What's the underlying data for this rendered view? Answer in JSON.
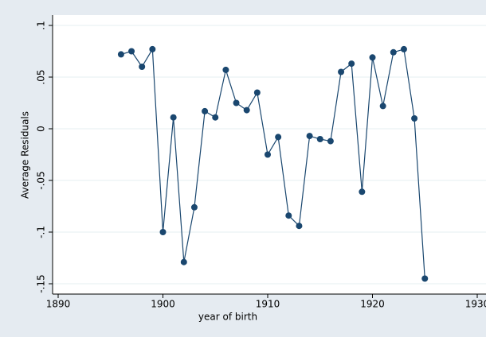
{
  "chart_data": {
    "type": "line",
    "x_label": "year of birth",
    "y_label": "Average Residuals",
    "x": [
      1896,
      1897,
      1898,
      1899,
      1900,
      1901,
      1902,
      1903,
      1904,
      1905,
      1906,
      1907,
      1908,
      1909,
      1910,
      1911,
      1912,
      1913,
      1914,
      1915,
      1916,
      1917,
      1918,
      1919,
      1920,
      1921,
      1922,
      1923,
      1924,
      1925
    ],
    "series": [
      {
        "color": "#1a476f",
        "values": [
          0.072,
          0.075,
          0.06,
          0.077,
          -0.1,
          0.011,
          -0.129,
          -0.076,
          0.017,
          0.011,
          0.057,
          0.025,
          0.018,
          0.035,
          -0.025,
          -0.008,
          -0.084,
          -0.094,
          -0.007,
          -0.01,
          -0.012,
          0.055,
          0.063,
          -0.061,
          0.069,
          0.022,
          0.074,
          0.077,
          0.01,
          -0.145
        ]
      }
    ],
    "xlim": [
      1890,
      1930
    ],
    "xticks": [
      1890,
      1900,
      1910,
      1920,
      1930
    ],
    "ylim": [
      -0.16,
      0.11
    ],
    "yticks": [
      {
        "value": -0.15,
        "label": "-.15"
      },
      {
        "value": -0.1,
        "label": "-.1"
      },
      {
        "value": -0.05,
        "label": "-.05"
      },
      0,
      {
        "value": 0.05,
        "label": ".05"
      },
      {
        "value": 0.1,
        "label": ".1"
      }
    ],
    "grid": true
  }
}
